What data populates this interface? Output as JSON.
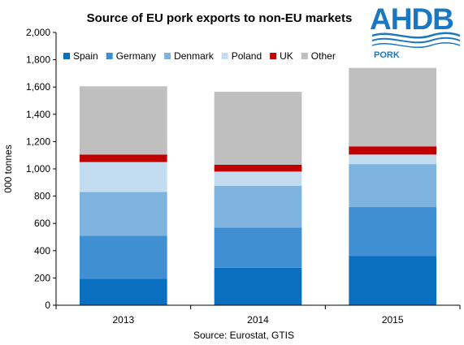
{
  "logo": {
    "name": "AHDB",
    "sub": "PORK",
    "color": "#1a78c2"
  },
  "chart_data": {
    "type": "bar",
    "stacked": true,
    "title": "Source of EU pork exports to non-EU markets",
    "xlabel": "Source: Eurostat, GTIS",
    "ylabel": "000 tonnes",
    "ylim": [
      0,
      2000
    ],
    "yticks": [
      0,
      200,
      400,
      600,
      800,
      1000,
      1200,
      1400,
      1600,
      1800,
      2000
    ],
    "ytick_labels": [
      "0",
      "200",
      "400",
      "600",
      "800",
      "1,000",
      "1,200",
      "1,400",
      "1,600",
      "1,800",
      "2,000"
    ],
    "grid": false,
    "legend_position": "top",
    "categories": [
      "2013",
      "2014",
      "2015"
    ],
    "series": [
      {
        "name": "Spain",
        "color": "#0b6fc0",
        "values": [
          195,
          275,
          360
        ]
      },
      {
        "name": "Germany",
        "color": "#3f8fd2",
        "values": [
          315,
          295,
          360
        ]
      },
      {
        "name": "Denmark",
        "color": "#7fb3df",
        "values": [
          320,
          305,
          315
        ]
      },
      {
        "name": "Poland",
        "color": "#c3dcf0",
        "values": [
          220,
          105,
          70
        ]
      },
      {
        "name": "UK",
        "color": "#c00000",
        "values": [
          55,
          50,
          60
        ]
      },
      {
        "name": "Other",
        "color": "#bfbfbf",
        "values": [
          500,
          535,
          575
        ]
      }
    ]
  }
}
